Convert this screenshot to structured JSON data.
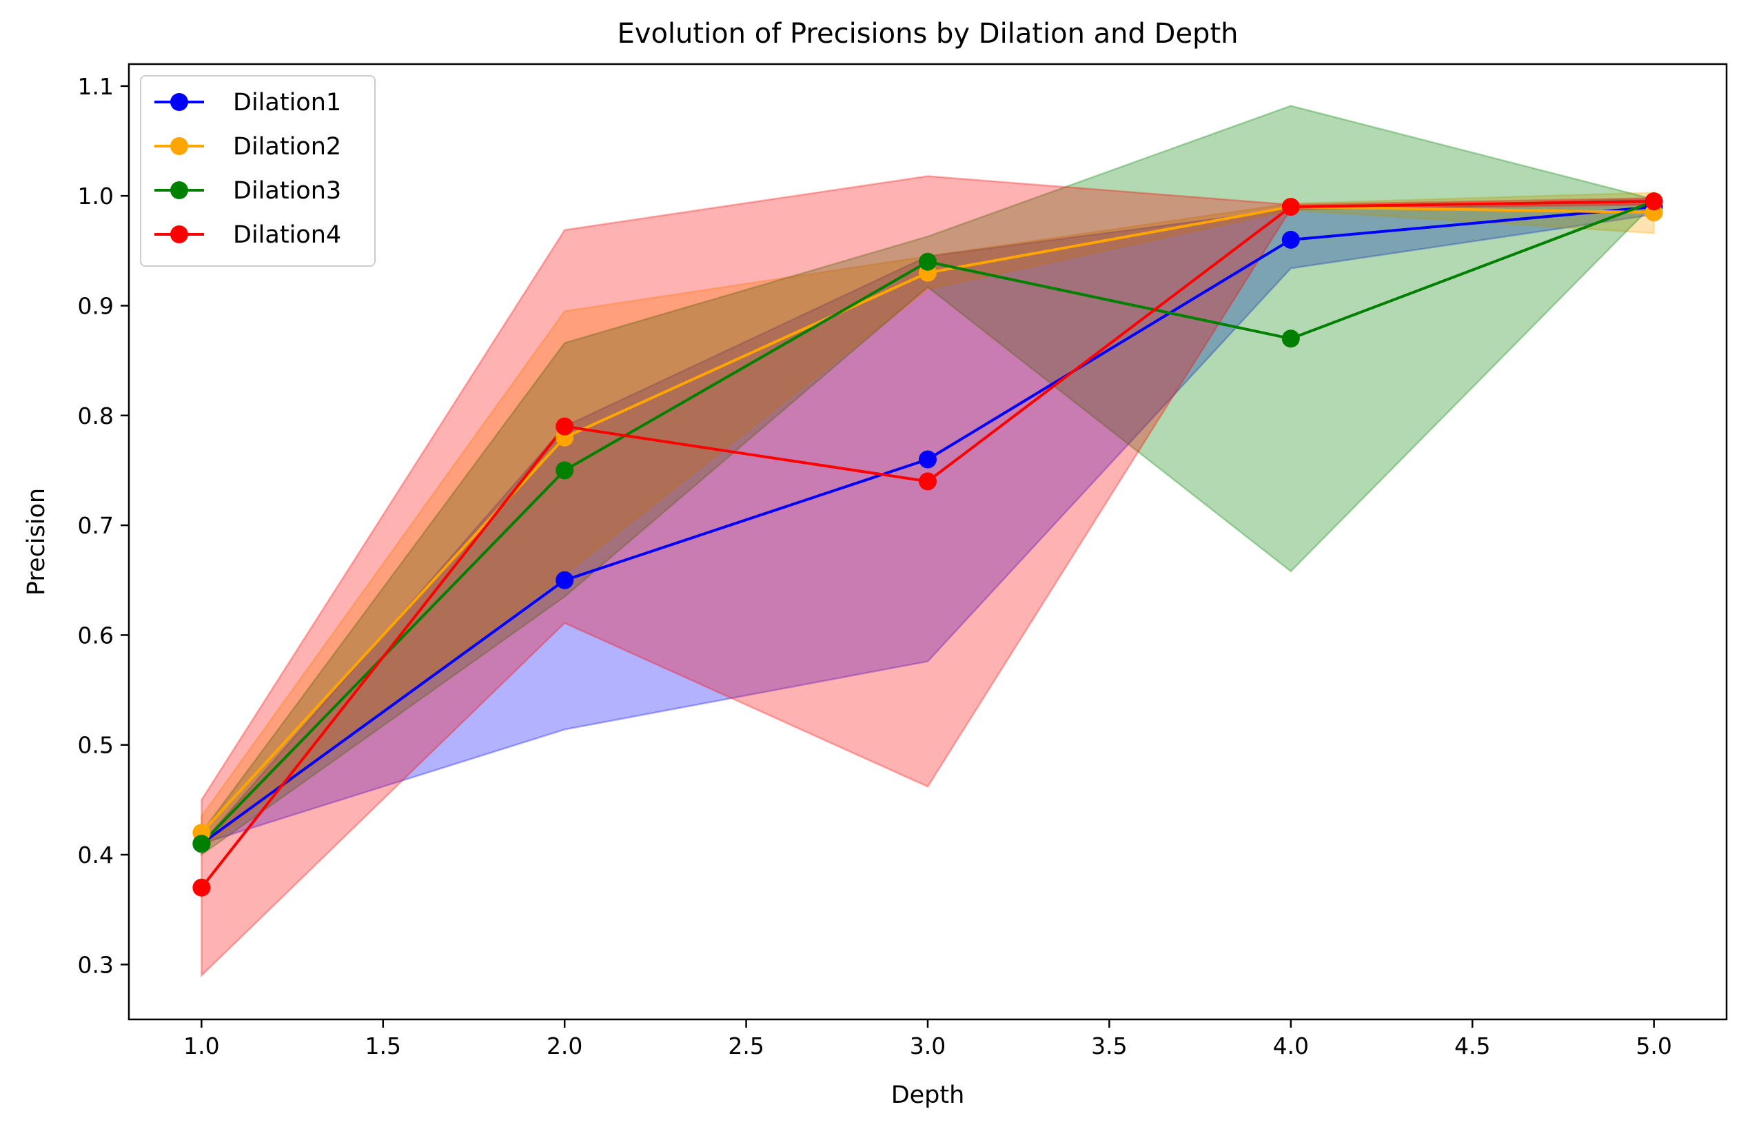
{
  "chart_data": {
    "type": "line",
    "title": "Evolution of Precisions by Dilation and Depth",
    "xlabel": "Depth",
    "ylabel": "Precision",
    "xlim": [
      0.8,
      5.2
    ],
    "ylim": [
      0.25,
      1.12
    ],
    "xticks": [
      1.0,
      1.5,
      2.0,
      2.5,
      3.0,
      3.5,
      4.0,
      4.5,
      5.0
    ],
    "xtick_labels": [
      "1.0",
      "1.5",
      "2.0",
      "2.5",
      "3.0",
      "3.5",
      "4.0",
      "4.5",
      "5.0"
    ],
    "yticks": [
      0.3,
      0.4,
      0.5,
      0.6,
      0.7,
      0.8,
      0.9,
      1.0,
      1.1
    ],
    "ytick_labels": [
      "0.3",
      "0.4",
      "0.5",
      "0.6",
      "0.7",
      "0.8",
      "0.9",
      "1.0",
      "1.1"
    ],
    "grid": false,
    "legend_position": "top-left",
    "x": [
      1,
      2,
      3,
      4,
      5
    ],
    "series": [
      {
        "name": "Dilation1",
        "color": "#0000ff",
        "values": [
          0.41,
          0.65,
          0.76,
          0.96,
          0.99
        ],
        "upper": [
          0.41,
          0.79,
          0.945,
          0.988,
          0.997
        ],
        "lower": [
          0.41,
          0.514,
          0.576,
          0.934,
          0.983
        ]
      },
      {
        "name": "Dilation2",
        "color": "#ffa500",
        "values": [
          0.42,
          0.78,
          0.93,
          0.99,
          0.985
        ],
        "upper": [
          0.435,
          0.895,
          0.945,
          0.993,
          1.003
        ],
        "lower": [
          0.405,
          0.655,
          0.915,
          0.987,
          0.966
        ]
      },
      {
        "name": "Dilation3",
        "color": "#008000",
        "values": [
          0.41,
          0.75,
          0.94,
          0.87,
          0.995
        ],
        "upper": [
          0.42,
          0.866,
          0.963,
          1.082,
          0.997
        ],
        "lower": [
          0.4,
          0.635,
          0.917,
          0.658,
          0.993
        ]
      },
      {
        "name": "Dilation4",
        "color": "#ff0000",
        "values": [
          0.37,
          0.79,
          0.74,
          0.99,
          0.995
        ],
        "upper": [
          0.45,
          0.969,
          1.018,
          0.992,
          0.998
        ],
        "lower": [
          0.29,
          0.611,
          0.462,
          0.988,
          0.992
        ]
      }
    ]
  }
}
